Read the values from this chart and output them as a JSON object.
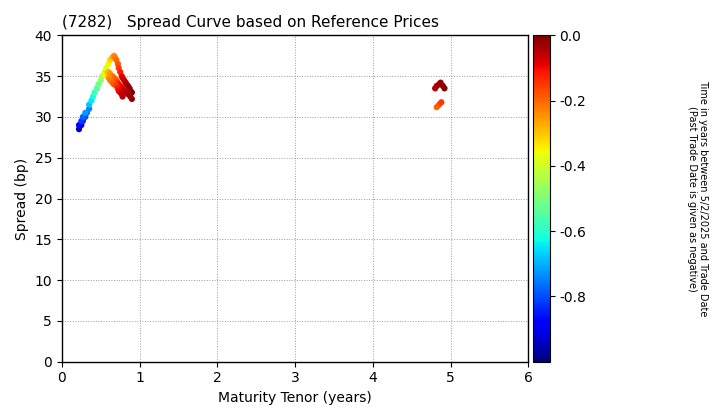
{
  "title": "(7282)   Spread Curve based on Reference Prices",
  "xlabel": "Maturity Tenor (years)",
  "ylabel": "Spread (bp)",
  "colorbar_label": "Time in years between 5/2/2025 and Trade Date\n(Past Trade Date is given as negative)",
  "xlim": [
    0,
    6
  ],
  "ylim": [
    0,
    40
  ],
  "xticks": [
    0,
    1,
    2,
    3,
    4,
    5,
    6
  ],
  "yticks": [
    0,
    5,
    10,
    15,
    20,
    25,
    30,
    35,
    40
  ],
  "colorbar_ticks": [
    0.0,
    -0.2,
    -0.4,
    -0.6,
    -0.8
  ],
  "vmin": -1.0,
  "vmax": 0.0,
  "points": {
    "x": [
      0.22,
      0.25,
      0.27,
      0.3,
      0.32,
      0.35,
      0.22,
      0.25,
      0.27,
      0.3,
      0.35,
      0.38,
      0.4,
      0.42,
      0.45,
      0.47,
      0.5,
      0.52,
      0.55,
      0.57,
      0.6,
      0.62,
      0.65,
      0.67,
      0.68,
      0.7,
      0.72,
      0.73,
      0.75,
      0.77,
      0.78,
      0.8,
      0.82,
      0.83,
      0.85,
      0.87,
      0.88,
      0.9,
      0.55,
      0.58,
      0.6,
      0.62,
      0.65,
      0.67,
      0.7,
      0.72,
      0.73,
      0.75,
      0.78,
      0.8,
      0.83,
      0.85,
      0.88,
      0.9,
      0.6,
      0.62,
      0.65,
      0.67,
      0.7,
      0.72,
      0.73,
      0.75,
      0.77,
      0.78,
      4.8,
      4.82,
      4.85,
      4.87,
      4.9,
      4.92,
      4.82,
      4.85,
      4.88
    ],
    "y": [
      28.5,
      29.0,
      29.5,
      30.0,
      30.5,
      31.0,
      29.0,
      29.5,
      30.0,
      30.5,
      31.5,
      32.0,
      32.5,
      33.0,
      33.5,
      34.0,
      34.5,
      35.0,
      35.5,
      36.0,
      36.5,
      37.0,
      37.3,
      37.5,
      37.3,
      37.0,
      36.5,
      36.0,
      35.5,
      35.0,
      34.8,
      34.5,
      34.2,
      34.0,
      33.8,
      33.5,
      33.2,
      33.0,
      35.2,
      35.4,
      35.5,
      35.3,
      35.0,
      34.8,
      34.5,
      34.2,
      34.0,
      33.8,
      33.5,
      33.2,
      33.0,
      32.8,
      32.5,
      32.2,
      34.8,
      34.5,
      34.2,
      34.0,
      33.8,
      33.5,
      33.2,
      33.0,
      32.8,
      32.5,
      33.5,
      33.8,
      34.0,
      34.2,
      33.8,
      33.5,
      31.2,
      31.5,
      31.8
    ],
    "c": [
      -0.95,
      -0.9,
      -0.85,
      -0.8,
      -0.78,
      -0.75,
      -0.88,
      -0.82,
      -0.78,
      -0.72,
      -0.68,
      -0.65,
      -0.62,
      -0.58,
      -0.55,
      -0.52,
      -0.48,
      -0.45,
      -0.42,
      -0.38,
      -0.35,
      -0.32,
      -0.28,
      -0.25,
      -0.22,
      -0.2,
      -0.18,
      -0.15,
      -0.12,
      -0.1,
      -0.08,
      -0.06,
      -0.05,
      -0.04,
      -0.03,
      -0.02,
      -0.01,
      0.0,
      -0.35,
      -0.32,
      -0.28,
      -0.25,
      -0.22,
      -0.2,
      -0.18,
      -0.15,
      -0.12,
      -0.1,
      -0.08,
      -0.06,
      -0.05,
      -0.04,
      -0.03,
      -0.02,
      -0.25,
      -0.22,
      -0.2,
      -0.18,
      -0.15,
      -0.12,
      -0.1,
      -0.08,
      -0.06,
      -0.05,
      -0.05,
      -0.04,
      -0.03,
      -0.02,
      -0.01,
      0.0,
      -0.2,
      -0.18,
      -0.15
    ]
  }
}
